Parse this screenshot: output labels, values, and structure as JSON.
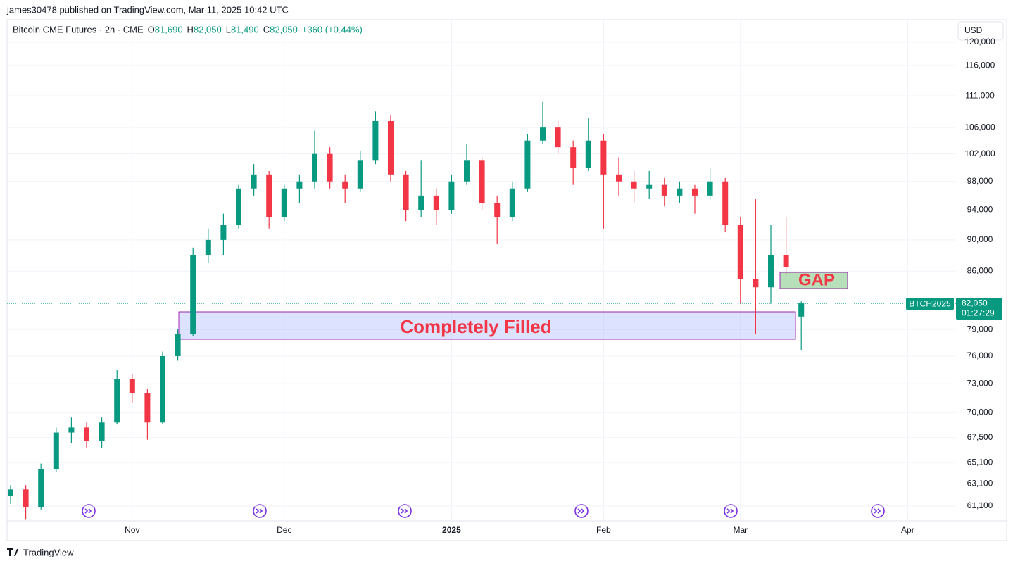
{
  "header": {
    "published": "james30478 published on TradingView.com, Mar 11, 2025 10:42 UTC",
    "symbol": "Bitcoin CME Futures · 2h · CME",
    "ohlc": [
      {
        "label": "O",
        "value": "81,690"
      },
      {
        "label": "H",
        "value": "82,050"
      },
      {
        "label": "L",
        "value": "81,490"
      },
      {
        "label": "C",
        "value": "82,050"
      }
    ],
    "change": "+360 (+0.44%)"
  },
  "currency": "USD",
  "footer": "TradingView",
  "chart_data": {
    "type": "candlestick",
    "log_scale": true,
    "grid": true,
    "up_color": "#089981",
    "down_color": "#f23645",
    "ylim": [
      59800,
      124000
    ],
    "yticks": [
      {
        "value": 61100,
        "label": "61,100"
      },
      {
        "value": 63100,
        "label": "63,100"
      },
      {
        "value": 65100,
        "label": "65,100"
      },
      {
        "value": 67500,
        "label": "67,500"
      },
      {
        "value": 70000,
        "label": "70,000"
      },
      {
        "value": 73000,
        "label": "73,000"
      },
      {
        "value": 76000,
        "label": "76,000"
      },
      {
        "value": 79000,
        "label": "79,000"
      },
      {
        "value": 86000,
        "label": "86,000"
      },
      {
        "value": 90000,
        "label": "90,000"
      },
      {
        "value": 94000,
        "label": "94,000"
      },
      {
        "value": 98000,
        "label": "98,000"
      },
      {
        "value": 102000,
        "label": "102,000"
      },
      {
        "value": 106000,
        "label": "106,000"
      },
      {
        "value": 111000,
        "label": "111,000"
      },
      {
        "value": 116000,
        "label": "116,000"
      },
      {
        "value": 120000,
        "label": "120,000"
      }
    ],
    "categories": [
      null,
      null,
      null,
      null,
      null,
      null,
      null,
      null,
      "Nov",
      null,
      null,
      null,
      null,
      null,
      null,
      null,
      null,
      null,
      "Dec",
      null,
      null,
      null,
      null,
      null,
      null,
      null,
      null,
      null,
      null,
      "2025",
      null,
      null,
      null,
      null,
      null,
      null,
      null,
      null,
      null,
      "Feb",
      null,
      null,
      null,
      null,
      null,
      null,
      null,
      null,
      "Mar",
      null,
      null,
      null,
      null,
      null,
      null,
      null,
      null,
      null,
      null,
      "Apr",
      null,
      null
    ],
    "open": [
      62000,
      62600,
      61000,
      64500,
      68000,
      68500,
      67200,
      69000,
      73500,
      72000,
      69000,
      76000,
      78500,
      88000,
      90000,
      92000,
      97000,
      99000,
      93000,
      97000,
      98000,
      102000,
      98000,
      97000,
      101000,
      107000,
      99000,
      94000,
      96000,
      94000,
      98000,
      101000,
      95000,
      93000,
      97000,
      104000,
      106000,
      103000,
      100000,
      104000,
      99000,
      98000,
      97000,
      97500,
      96000,
      97000,
      96000,
      98000,
      92000,
      85000,
      84000,
      88000,
      80500,
      null,
      null,
      null,
      null,
      null,
      null,
      null,
      null,
      null
    ],
    "high": [
      63000,
      63000,
      65000,
      68500,
      69500,
      69000,
      69500,
      74500,
      74000,
      72500,
      76500,
      79000,
      89000,
      91500,
      93500,
      97500,
      100500,
      99500,
      97500,
      99000,
      105500,
      103000,
      99000,
      102500,
      108500,
      108000,
      99500,
      101000,
      97000,
      99000,
      103500,
      101500,
      96000,
      98000,
      105000,
      110000,
      107000,
      104000,
      107500,
      105000,
      101500,
      99500,
      99500,
      98500,
      98000,
      97500,
      100000,
      98500,
      93000,
      95500,
      92000,
      93000,
      82300,
      null,
      null,
      null,
      null,
      null,
      null,
      null,
      null,
      null
    ],
    "low": [
      61300,
      59900,
      60800,
      64200,
      67000,
      66500,
      66500,
      68800,
      71000,
      67300,
      68800,
      75500,
      78200,
      87000,
      88000,
      91500,
      96000,
      91500,
      92500,
      95000,
      97000,
      97000,
      95000,
      96500,
      100500,
      98000,
      92500,
      93000,
      92000,
      93500,
      97500,
      94000,
      89500,
      92500,
      96500,
      103500,
      102000,
      97500,
      99500,
      91500,
      96000,
      95000,
      95500,
      94500,
      95000,
      93500,
      95500,
      91000,
      82000,
      78500,
      82000,
      85500,
      76700,
      null,
      null,
      null,
      null,
      null,
      null,
      null,
      null,
      null
    ],
    "close": [
      62600,
      61000,
      64500,
      68000,
      68500,
      67200,
      69000,
      73500,
      72000,
      69000,
      76000,
      78500,
      88000,
      90000,
      92000,
      97000,
      99000,
      93000,
      97000,
      98000,
      102000,
      98000,
      97000,
      101000,
      107000,
      99000,
      94000,
      96000,
      94000,
      98000,
      101000,
      95000,
      93000,
      97000,
      104000,
      106000,
      103000,
      100000,
      104000,
      99000,
      98000,
      97000,
      97500,
      96000,
      97000,
      96000,
      98000,
      92000,
      85000,
      84000,
      88000,
      86500,
      82050,
      null,
      null,
      null,
      null,
      null,
      null,
      null,
      null,
      null
    ],
    "price_label": {
      "symbol": "BTCH2025",
      "value": 82050,
      "label": "82,050",
      "countdown": "01:27:29"
    },
    "annotations": [
      {
        "text": "Completely Filled"
      },
      {
        "text": "GAP"
      }
    ]
  }
}
